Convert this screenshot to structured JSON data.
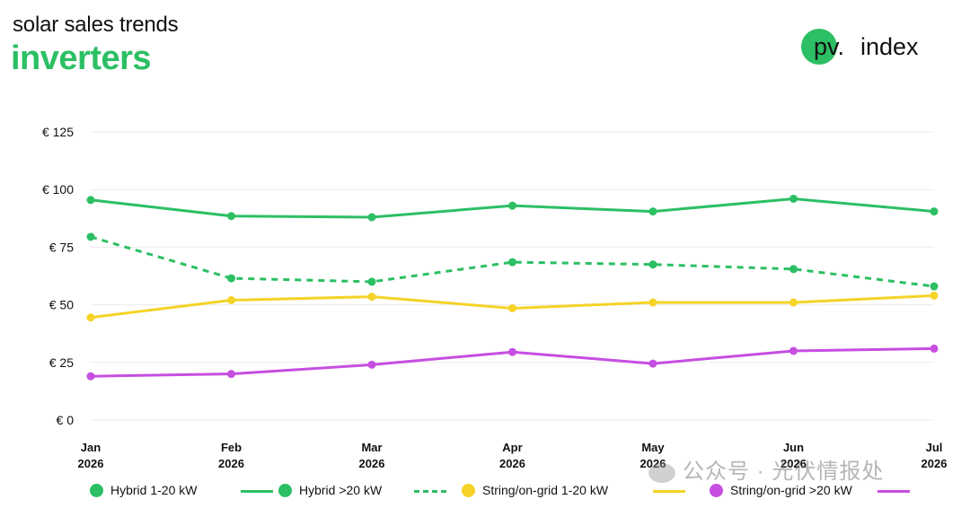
{
  "header": {
    "subtitle": "solar sales trends",
    "title": "inverters"
  },
  "logo": {
    "mark": "pv.",
    "text": "index",
    "accent": "#2cbf63"
  },
  "watermark": {
    "text": "公众号 · 光伏情报处",
    "icon": "wechat-icon"
  },
  "chart_data": {
    "type": "line",
    "categories": [
      "Jan\n2026",
      "Feb\n2026",
      "Mar\n2026",
      "Apr\n2026",
      "May\n2026",
      "Jun\n2026",
      "Jul\n2026"
    ],
    "yticks": [
      "€ 0",
      "€ 25",
      "€ 50",
      "€ 75",
      "€ 100",
      "€ 125"
    ],
    "ylim": [
      0,
      125
    ],
    "grid": true,
    "legend_position": "bottom",
    "series": [
      {
        "name": "Hybrid 1-20 kW",
        "color": "#2cbf63",
        "dash": false,
        "values": [
          95.5,
          88.5,
          88,
          93,
          90.5,
          96,
          90.5
        ]
      },
      {
        "name": "Hybrid >20 kW",
        "color": "#2cbf63",
        "dash": true,
        "values": [
          79.5,
          61.5,
          60,
          68.5,
          67.5,
          65.5,
          58
        ]
      },
      {
        "name": "String/on-grid 1-20 kW",
        "color": "#f5d327",
        "dash": false,
        "values": [
          44.5,
          52,
          53.5,
          48.5,
          51,
          51,
          54
        ]
      },
      {
        "name": "String/on-grid >20 kW",
        "color": "#c64ee0",
        "dash": false,
        "values": [
          19,
          20,
          24,
          29.5,
          24.5,
          30,
          31
        ]
      }
    ]
  }
}
